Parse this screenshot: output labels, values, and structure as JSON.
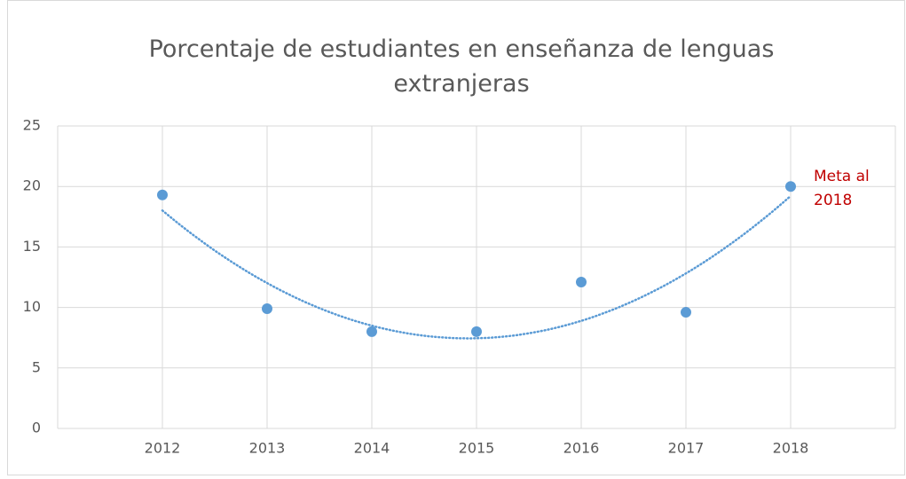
{
  "chart_data": {
    "type": "scatter",
    "title": "Porcentaje de estudiantes en enseñanza de lenguas extranjeras",
    "x": [
      2012,
      2013,
      2014,
      2015,
      2016,
      2017,
      2018
    ],
    "values": [
      19.3,
      9.9,
      8.0,
      8.0,
      12.1,
      9.6,
      20.0
    ],
    "color": "#5b9bd5",
    "xlim": [
      2011,
      2019
    ],
    "xticks": [
      2012,
      2013,
      2014,
      2015,
      2016,
      2017,
      2018
    ],
    "ylim": [
      0,
      25
    ],
    "yticks": [
      0,
      5,
      10,
      15,
      20,
      25
    ],
    "grid": true,
    "trendline": {
      "kind": "polynomial",
      "order": 2
    },
    "annotation": {
      "text": "Meta al 2018",
      "color": "#c00000",
      "point": 6
    }
  }
}
